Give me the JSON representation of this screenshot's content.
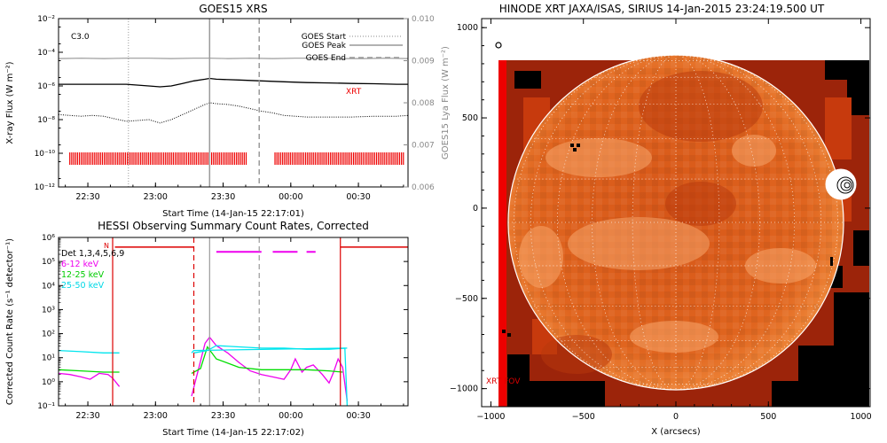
{
  "colors": {
    "goes_flux": "#000000",
    "goes_lya": "#9a9a9a",
    "xrt_marks": "#ee0000",
    "red_line": "#dd0000",
    "magenta": "#ee00ee",
    "green": "#00dd00",
    "cyan": "#00e5ee",
    "sun_disk": "#e56a2a",
    "sun_dark": "#b3300a",
    "limb": "#ffffff"
  },
  "chart_data": [
    {
      "type": "line",
      "title": "GOES15 XRS",
      "class_label": "C3.0",
      "xlabel": "Start Time (14-Jan-15 22:17:01)",
      "ylabel_left": "X-ray Flux (W m⁻²)",
      "ylabel_right": "GOES15 Lya Flux (W m⁻²)",
      "xlim": [
        0,
        155
      ],
      "x_ticks": [
        13,
        43,
        73,
        103,
        133
      ],
      "x_ticklabels": [
        "22:30",
        "23:00",
        "23:30",
        "00:00",
        "00:30"
      ],
      "y_log_range": [
        -12,
        -2
      ],
      "y_ticks": [
        -12,
        -10,
        -8,
        -6,
        -4,
        -2
      ],
      "y_ticklabels": [
        "10⁻¹²",
        "10⁻¹⁰",
        "10⁻⁸",
        "10⁻⁶",
        "10⁻⁴",
        "10⁻²"
      ],
      "y2_range": [
        0.006,
        0.01
      ],
      "y2_ticks": [
        0.006,
        0.007,
        0.008,
        0.009,
        0.01
      ],
      "y2_ticklabels": [
        "0.006",
        "0.007",
        "0.008",
        "0.009",
        "0.010"
      ],
      "legend": {
        "placement": "top-right",
        "entries": [
          {
            "label": "GOES Start",
            "style": "dotted",
            "x": 31
          },
          {
            "label": "GOES Peak",
            "style": "solid",
            "x": 67
          },
          {
            "label": "GOES End",
            "style": "dashed",
            "x": 89
          }
        ]
      },
      "xrt_label": "XRT",
      "series": [
        {
          "key": "lya",
          "style": "lya",
          "x": [
            0,
            10,
            20,
            30,
            40,
            50,
            60,
            67,
            75,
            85,
            95,
            105,
            115,
            125,
            135,
            145,
            155
          ],
          "values": [
            0.00905,
            0.00906,
            0.00905,
            0.00906,
            0.00906,
            0.00905,
            0.00906,
            0.00906,
            0.00905,
            0.00906,
            0.00905,
            0.00906,
            0.00906,
            0.00905,
            0.00905,
            0.00906,
            0.00905
          ]
        },
        {
          "key": "long",
          "style": "solid",
          "x": [
            0,
            10,
            20,
            30,
            40,
            45,
            50,
            55,
            60,
            65,
            67,
            70,
            80,
            90,
            100,
            110,
            120,
            130,
            140,
            150,
            155
          ],
          "values": [
            -5.9,
            -5.9,
            -5.9,
            -5.9,
            -6.0,
            -6.05,
            -6.0,
            -5.85,
            -5.7,
            -5.6,
            -5.55,
            -5.6,
            -5.65,
            -5.7,
            -5.75,
            -5.8,
            -5.82,
            -5.85,
            -5.87,
            -5.9,
            -5.9
          ]
        },
        {
          "key": "short",
          "style": "dotted",
          "x": [
            0,
            5,
            10,
            15,
            20,
            25,
            30,
            35,
            40,
            45,
            50,
            55,
            60,
            65,
            67,
            70,
            75,
            80,
            85,
            90,
            95,
            100,
            110,
            120,
            130,
            140,
            150,
            155
          ],
          "values": [
            -7.7,
            -7.75,
            -7.8,
            -7.75,
            -7.8,
            -7.95,
            -8.1,
            -8.05,
            -8.0,
            -8.2,
            -8.0,
            -7.7,
            -7.4,
            -7.1,
            -7.0,
            -7.05,
            -7.1,
            -7.2,
            -7.35,
            -7.5,
            -7.6,
            -7.75,
            -7.85,
            -7.85,
            -7.85,
            -7.8,
            -7.8,
            -7.75
          ]
        }
      ],
      "xrt_coverage": [
        [
          5,
          84
        ],
        [
          96,
          153
        ]
      ]
    },
    {
      "type": "line",
      "title": "HESSI Observing Summary Count Rates, Corrected",
      "xlabel": "Start Time (14-Jan-15 22:17:02)",
      "ylabel": "Corrected Count Rate (s⁻¹ detector⁻¹)",
      "xlim": [
        0,
        155
      ],
      "x_ticks": [
        13,
        43,
        73,
        103,
        133
      ],
      "x_ticklabels": [
        "22:30",
        "23:00",
        "23:30",
        "00:00",
        "00:30"
      ],
      "y_log_range": [
        -1,
        6
      ],
      "y_ticks": [
        -1,
        0,
        1,
        2,
        3,
        4,
        5,
        6
      ],
      "y_ticklabels": [
        "10⁻¹",
        "10⁰",
        "10¹",
        "10²",
        "10³",
        "10⁴",
        "10⁵",
        "10⁶"
      ],
      "legend": {
        "placement": "top-left",
        "entries": [
          {
            "label": "Det 1,3,4,5,6,9",
            "color_key": "red_line"
          },
          {
            "label": "6-12 keV",
            "color_key": "magenta"
          },
          {
            "label": "12-25 keV",
            "color_key": "green"
          },
          {
            "label": "25-50 keV",
            "color_key": "cyan"
          }
        ]
      },
      "flag_label": "N",
      "series": [
        {
          "label": "6-12 keV",
          "color_key": "magenta",
          "segments": [
            {
              "x": [
                0,
                5,
                10,
                14,
                18,
                22,
                24,
                27
              ],
              "values": [
                0.35,
                0.3,
                0.2,
                0.1,
                0.35,
                0.3,
                0.15,
                -0.2
              ]
            },
            {
              "x": [
                59,
                62,
                65,
                67,
                70,
                75,
                80,
                85,
                90,
                95,
                100,
                103,
                105,
                108,
                110,
                113,
                117,
                120,
                122,
                124,
                126,
                128
              ],
              "values": [
                -0.6,
                0.5,
                1.6,
                1.85,
                1.5,
                1.2,
                0.8,
                0.45,
                0.3,
                0.2,
                0.1,
                0.5,
                0.95,
                0.4,
                0.6,
                0.7,
                0.3,
                -0.05,
                0.4,
                0.95,
                0.6,
                -0.8
              ]
            }
          ]
        },
        {
          "label": "12-25 keV",
          "color_key": "green",
          "segments": [
            {
              "x": [
                0,
                10,
                20,
                27
              ],
              "values": [
                0.5,
                0.45,
                0.4,
                0.4
              ]
            },
            {
              "x": [
                59,
                63,
                66,
                70,
                80,
                90,
                100,
                110,
                120,
                126
              ],
              "values": [
                0.35,
                0.55,
                1.45,
                0.95,
                0.6,
                0.5,
                0.5,
                0.5,
                0.45,
                0.4
              ]
            }
          ]
        },
        {
          "label": "25-50 keV",
          "color_key": "cyan",
          "segments": [
            {
              "x": [
                0,
                10,
                20,
                27
              ],
              "values": [
                1.3,
                1.25,
                1.2,
                1.2
              ]
            },
            {
              "x": [
                59,
                60,
                127,
                128
              ],
              "values": [
                1.2,
                1.3,
                1.4,
                -1.0
              ]
            },
            {
              "x": [
                60,
                66,
                70,
                80,
                90,
                100,
                110,
                120,
                128
              ],
              "values": [
                1.2,
                1.3,
                1.5,
                1.45,
                1.4,
                1.4,
                1.35,
                1.35,
                1.4
              ]
            }
          ]
        }
      ],
      "attenuator_state": {
        "low_x": [
          0,
          24,
          25,
          60,
          61,
          124,
          125,
          155
        ],
        "high_level": 5.6,
        "low_level": -1,
        "high_spans": [
          [
            25,
            60
          ],
          [
            125,
            155
          ]
        ]
      },
      "magenta_state": {
        "level": 5.4,
        "spans": [
          [
            70,
            90
          ],
          [
            95,
            106
          ],
          [
            110,
            114
          ]
        ]
      },
      "vlines": [
        {
          "x": 24,
          "style": "solid",
          "color_key": "red_line"
        },
        {
          "x": 60,
          "style": "dashed",
          "color_key": "red_line"
        },
        {
          "x": 67,
          "style": "solid",
          "color_key": "goes_lya"
        },
        {
          "x": 89,
          "style": "dashed",
          "color_key": "goes_lya"
        },
        {
          "x": 125,
          "style": "solid",
          "color_key": "red_line"
        }
      ]
    },
    {
      "type": "heatmap",
      "title": "HINODE XRT JAXA/ISAS, SIRIUS 14-Jan-2015 23:24:19.500 UT",
      "xlabel": "X (arcsecs)",
      "ylabel": "",
      "xlim": [
        -1050,
        1050
      ],
      "ylim": [
        -1100,
        1050
      ],
      "x_ticks": [
        -1000,
        -500,
        0,
        500,
        1000
      ],
      "x_ticklabels": [
        "−1000",
        "−500",
        "0",
        "500",
        "1000"
      ],
      "y_ticks": [
        -1000,
        -500,
        0,
        500,
        1000
      ],
      "y_ticklabels": [
        "−1000",
        "−500",
        "0",
        "500",
        "1000"
      ],
      "fov_label": "XRT FOV",
      "disk_radius": 975,
      "image_extent_x": [
        -1000,
        1050
      ],
      "image_extent_y": [
        -1100,
        850
      ],
      "flare_location": [
        960,
        160
      ],
      "circle_marker": [
        -985,
        955
      ]
    }
  ]
}
